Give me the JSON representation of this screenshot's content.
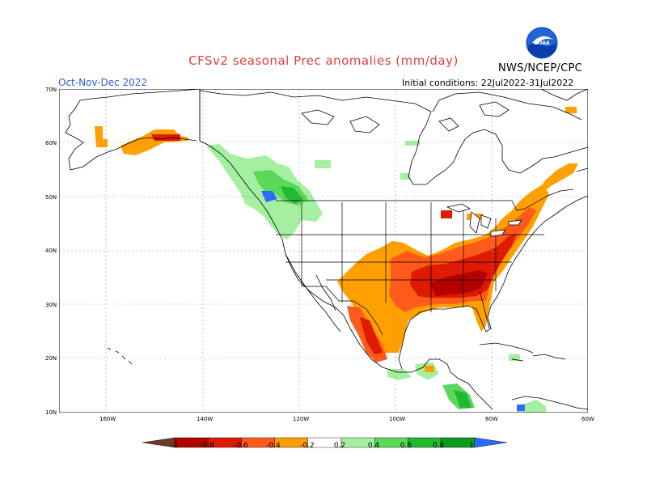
{
  "title": "CFSv2 seasonal Prec anomalies (mm/day)",
  "org": "NWS/NCEP/CPC",
  "logo_text": "NOAA",
  "season": "Oct-Nov-Dec 2022",
  "initial_conditions": "Initial conditions: 22Jul2022-31Jul2022",
  "lat_labels": [
    "70N",
    "60N",
    "50N",
    "40N",
    "30N",
    "20N",
    "10N"
  ],
  "lon_labels": [
    "160W",
    "140W",
    "120W",
    "100W",
    "80W",
    "60W"
  ],
  "legend": {
    "ticks": [
      "-1",
      "-0.8",
      "-0.6",
      "-0.4",
      "-0.2",
      "0.2",
      "0.4",
      "0.6",
      "0.8",
      "1"
    ],
    "colors": [
      "#6b3a2a",
      "#b50000",
      "#de1a00",
      "#ff5a1a",
      "#ff9f00",
      "#ffffff",
      "#a5f0a0",
      "#5ad85a",
      "#22b832",
      "#0f9a1e",
      "#2a6cff"
    ]
  }
}
